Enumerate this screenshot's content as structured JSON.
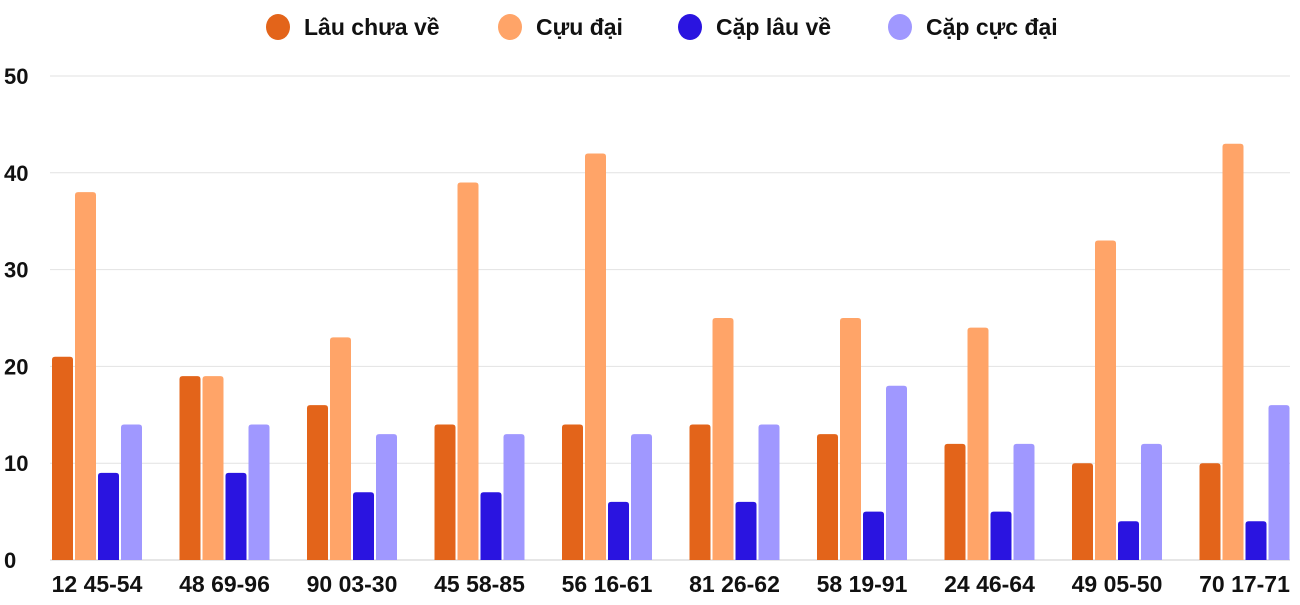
{
  "chart_data": {
    "type": "bar",
    "title": "",
    "xlabel": "",
    "ylabel": "",
    "ylim": [
      0,
      50
    ],
    "yticks": [
      0,
      10,
      20,
      30,
      40,
      50
    ],
    "grid": true,
    "legend_placement": "top",
    "categories": [
      "12 45-54",
      "48 69-96",
      "90 03-30",
      "45 58-85",
      "56 16-61",
      "81 26-62",
      "58 19-91",
      "24 46-64",
      "49 05-50",
      "70 17-71"
    ],
    "series": [
      {
        "name": "Lâu chưa về",
        "color": "#e3641a",
        "values": [
          21,
          19,
          16,
          14,
          14,
          14,
          13,
          12,
          10,
          10
        ]
      },
      {
        "name": "Cựu đại",
        "color": "#ffa468",
        "values": [
          38,
          19,
          23,
          39,
          42,
          25,
          25,
          24,
          33,
          43
        ]
      },
      {
        "name": "Cặp lâu về",
        "color": "#2a14e0",
        "values": [
          9,
          9,
          7,
          7,
          6,
          6,
          5,
          5,
          4,
          4
        ]
      },
      {
        "name": "Cặp cực đại",
        "color": "#a098ff",
        "values": [
          14,
          14,
          13,
          13,
          13,
          14,
          18,
          12,
          12,
          16
        ]
      }
    ]
  }
}
